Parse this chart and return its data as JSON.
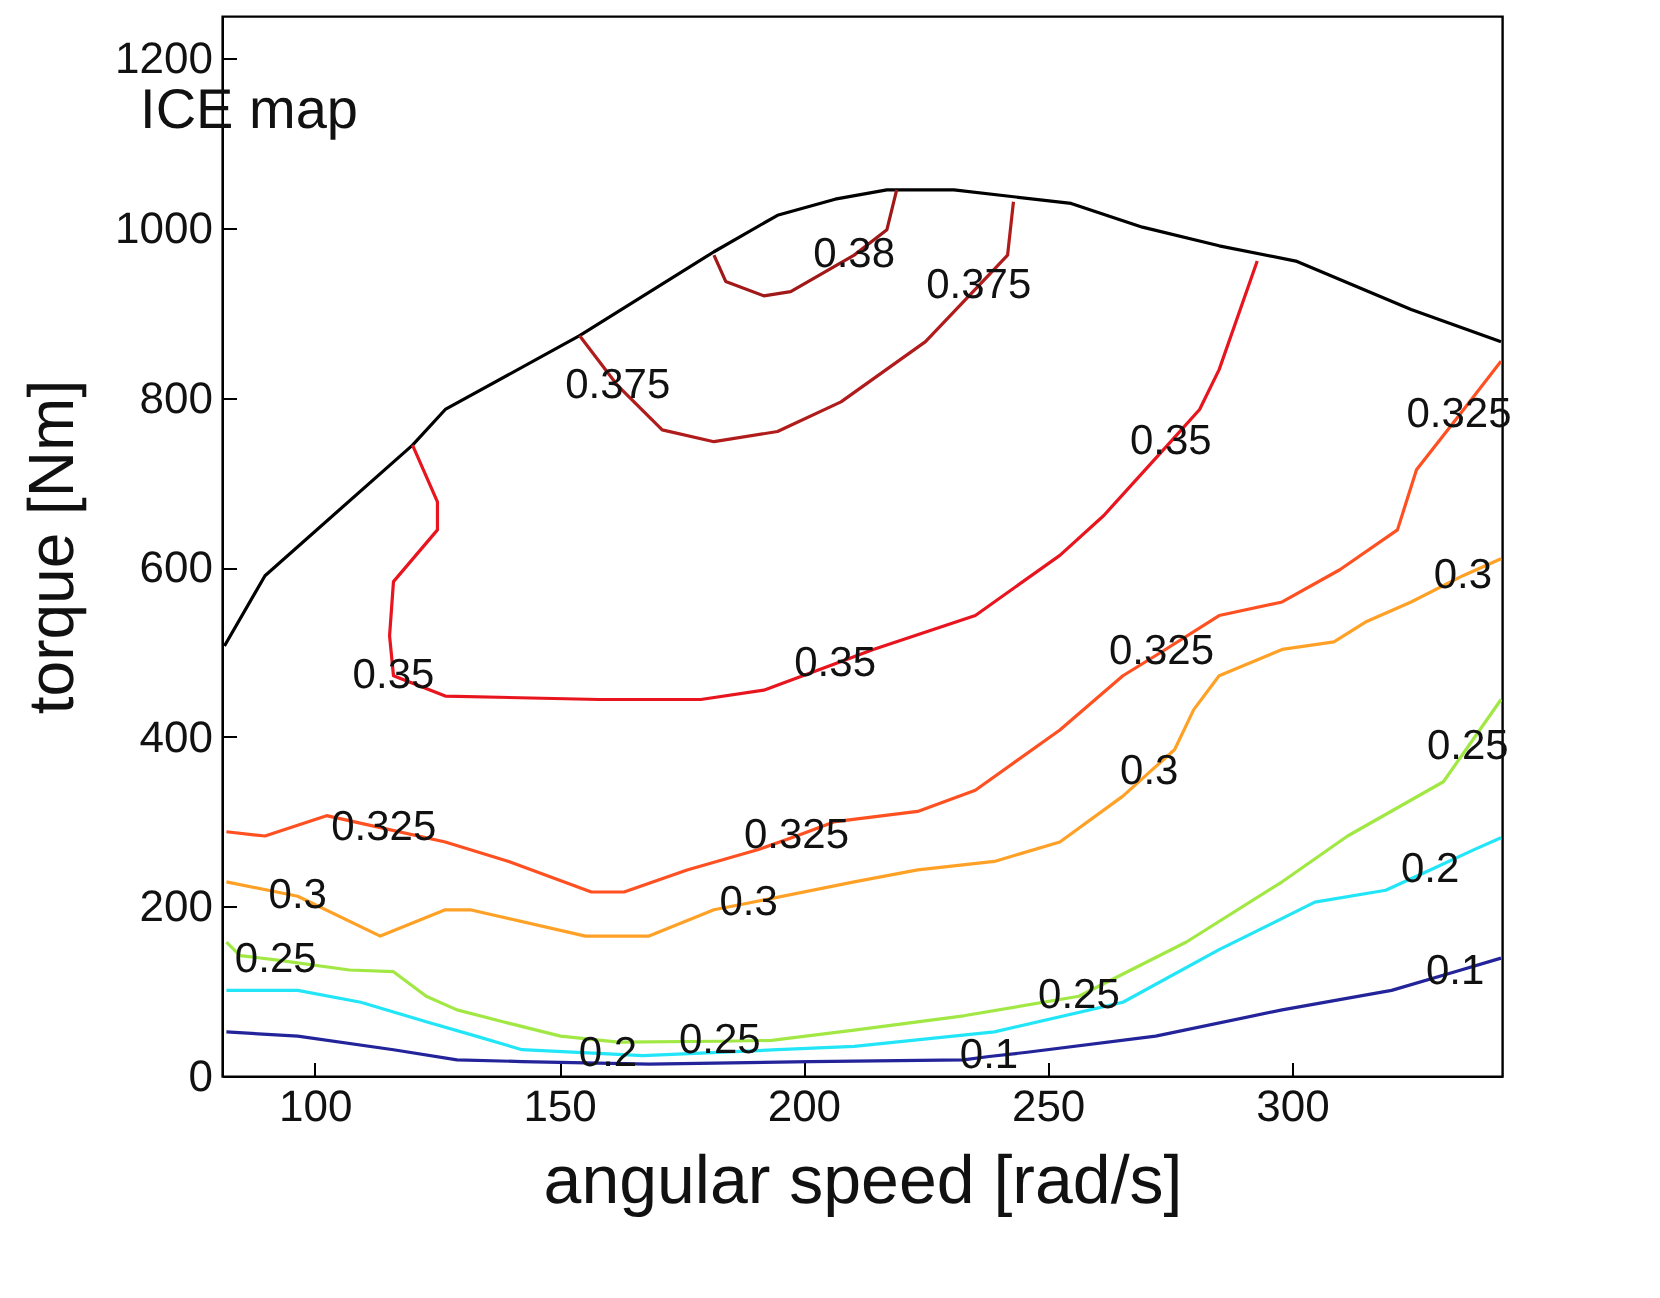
{
  "chart_data": {
    "type": "line",
    "title": "ICE map",
    "xlabel": "angular speed [rad/s]",
    "ylabel": "torque [Nm]",
    "xlim": [
      81,
      343
    ],
    "xticks": [
      100,
      150,
      200,
      250,
      300
    ],
    "ylim": [
      0,
      1250
    ],
    "yticks": [
      0,
      200,
      400,
      600,
      800,
      1000,
      1200
    ],
    "grid": false,
    "series": [
      {
        "color": "#000000",
        "x": [
          81.5,
          89.8,
          120.0,
          126.7,
          154.2,
          181.7,
          194.7,
          206.5,
          217.1,
          230.8,
          254.8,
          269.4,
          285.1,
          300.8,
          324.4,
          342.8
        ],
        "values": [
          507,
          590,
          744,
          786,
          873,
          972,
          1015,
          1034,
          1045,
          1045,
          1029,
          1001,
          979,
          961,
          904,
          866
        ]
      },
      {
        "color": "#a01818",
        "x": [
          181.7,
          184.1,
          191.9,
          197.4,
          210.4,
          217.1,
          219.1
        ],
        "values": [
          968,
          937,
          920,
          925,
          968,
          998,
          1045
        ]
      },
      {
        "color": "#b01c1c",
        "x": [
          154.2,
          162.0,
          171.1,
          181.7,
          194.7,
          207.7,
          225.0,
          235.9,
          241.8,
          243.0
        ],
        "values": [
          873,
          814,
          762,
          748,
          760,
          795,
          866,
          932,
          968,
          1031
        ]
      },
      {
        "color": "#e8141e",
        "x": [
          120.0,
          125.1,
          125.1,
          116.1,
          115.3,
          116.1,
          126.7,
          158.2,
          179.0,
          191.9,
          206.5,
          214.3,
          235.2,
          252.5,
          261.5,
          275.2,
          281.1,
          285.1,
          292.9
        ],
        "values": [
          744,
          677,
          644,
          583,
          519,
          472,
          448,
          444,
          444,
          455,
          486,
          503,
          543,
          614,
          661,
          748,
          786,
          833,
          961
        ]
      },
      {
        "color": "#ff5022",
        "x": [
          81.9,
          89.8,
          102.4,
          114.1,
          126.7,
          139.7,
          156.6,
          163.3,
          176.2,
          190.8,
          198.6,
          206.5,
          223.4,
          235.2,
          252.5,
          265.4,
          273.3,
          285.1,
          298.0,
          309.8,
          321.6,
          325.5,
          334.2,
          342.8
        ],
        "values": [
          288,
          283,
          307,
          292,
          276,
          253,
          217,
          217,
          243,
          267,
          283,
          300,
          312,
          337,
          408,
          472,
          500,
          543,
          559,
          597,
          644,
          715,
          779,
          843
        ]
      },
      {
        "color": "#ffa126",
        "x": [
          81.9,
          96.5,
          113.4,
          126.7,
          131.8,
          155.4,
          168.4,
          181.7,
          188.8,
          210.4,
          223.4,
          239.1,
          252.5,
          265.4,
          270.8,
          276.0,
          279.9,
          285.1,
          298.0,
          308.6,
          315.3,
          324.4,
          335.0,
          342.8
        ],
        "values": [
          229,
          212,
          165,
          196,
          196,
          165,
          165,
          196,
          204,
          229,
          243,
          253,
          276,
          330,
          358,
          385,
          432,
          472,
          503,
          512,
          536,
          559,
          590,
          610
        ]
      },
      {
        "color": "#a2e844",
        "x": [
          81.9,
          84.7,
          92.0,
          107.1,
          116.1,
          122.8,
          129.1,
          138.5,
          150.3,
          162.1,
          182.9,
          193.5,
          210.4,
          232.8,
          256.4,
          278.4,
          298.0,
          311.4,
          331.0,
          336.0,
          342.8
        ],
        "values": [
          158,
          142,
          137,
          125,
          123,
          94,
          78,
          64,
          47,
          40,
          41,
          42,
          54,
          71,
          94,
          158,
          229,
          283,
          347,
          388,
          444
        ]
      },
      {
        "color": "#22e6f8",
        "x": [
          81.9,
          96.5,
          109.4,
          122.8,
          133.0,
          142.4,
          160.0,
          167.2,
          194.7,
          210.4,
          239.1,
          265.4,
          285.1,
          304.7,
          319.2,
          328.3,
          337.3,
          342.8
        ],
        "values": [
          101,
          101,
          87,
          64,
          47,
          31,
          26,
          24,
          31,
          35,
          52,
          87,
          149,
          205,
          219,
          243,
          267,
          281
        ]
      },
      {
        "color": "#23239a",
        "x": [
          81.9,
          96.5,
          116.1,
          129.1,
          142.4,
          168.4,
          201.4,
          232.8,
          238.0,
          245.8,
          272.1,
          298.0,
          320.4,
          333.4,
          342.8
        ],
        "values": [
          52,
          47,
          31,
          19,
          17,
          14,
          17,
          19,
          23,
          28,
          47,
          78,
          101,
          123,
          139
        ]
      }
    ],
    "annotations": [
      {
        "text": "0.38",
        "x": 210.4,
        "y": 968
      },
      {
        "text": "0.375",
        "x": 162.0,
        "y": 814
      },
      {
        "text": "0.375",
        "x": 235.9,
        "y": 932
      },
      {
        "text": "0.35",
        "x": 275.2,
        "y": 748
      },
      {
        "text": "0.325",
        "x": 334.2,
        "y": 779
      },
      {
        "text": "0.35",
        "x": 116.1,
        "y": 472
      },
      {
        "text": "0.35",
        "x": 206.5,
        "y": 486
      },
      {
        "text": "0.325",
        "x": 273.3,
        "y": 500
      },
      {
        "text": "0.3",
        "x": 335.0,
        "y": 590
      },
      {
        "text": "0.3",
        "x": 270.8,
        "y": 358
      },
      {
        "text": "0.325",
        "x": 114.1,
        "y": 292
      },
      {
        "text": "0.325",
        "x": 198.6,
        "y": 283
      },
      {
        "text": "0.3",
        "x": 96.5,
        "y": 212
      },
      {
        "text": "0.3",
        "x": 188.8,
        "y": 204
      },
      {
        "text": "0.25",
        "x": 92.0,
        "y": 137
      },
      {
        "text": "0.25",
        "x": 182.9,
        "y": 41
      },
      {
        "text": "0.25",
        "x": 256.4,
        "y": 94
      },
      {
        "text": "0.25",
        "x": 336.0,
        "y": 388
      },
      {
        "text": "0.2",
        "x": 328.3,
        "y": 243
      },
      {
        "text": "0.1",
        "x": 333.4,
        "y": 123
      },
      {
        "text": "0.2",
        "x": 160.0,
        "y": 26
      },
      {
        "text": "0.1",
        "x": 238.0,
        "y": 23
      }
    ]
  }
}
